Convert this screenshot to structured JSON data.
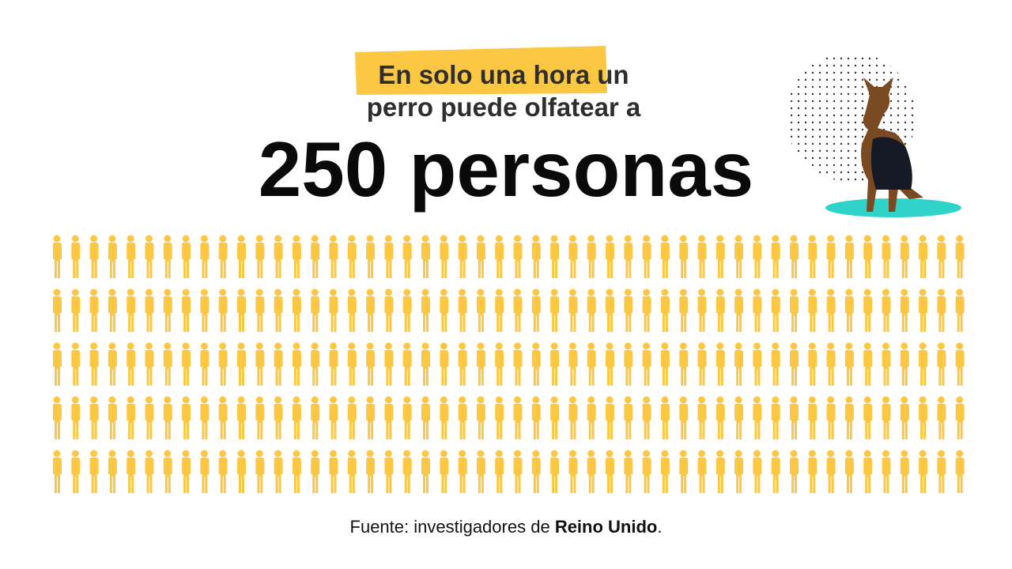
{
  "title": {
    "highlight": "En solo una hora",
    "line1_rest": "un",
    "line2": "perro puede olfatear a"
  },
  "headline": {
    "count": 250,
    "unit": "personas"
  },
  "source": {
    "prefix": "Fuente: investigadores de",
    "emphasis": "Reino Unido",
    "suffix": "."
  }
}
